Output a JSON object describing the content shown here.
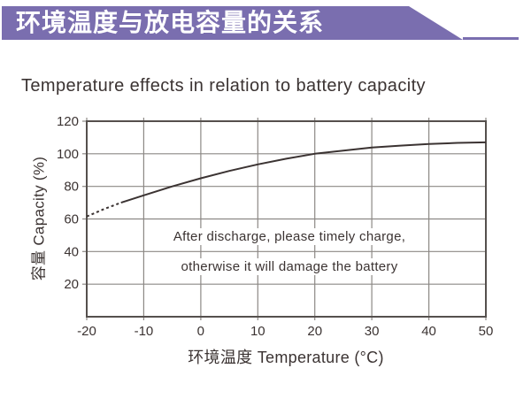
{
  "header": {
    "title": "环境温度与放电容量的关系"
  },
  "subtitle": "Temperature effects in relation to battery capacity",
  "annotation": {
    "line1": "After discharge, please timely charge,",
    "line2": "otherwise it will damage the battery"
  },
  "colors": {
    "accent": "#7A6EAF",
    "ink": "#3B3332",
    "grid": "#8C8885",
    "frame": "#55504D",
    "curve": "#3B3332"
  },
  "chart_data": {
    "type": "line",
    "title": "Temperature effects in relation to battery capacity",
    "xlabel": "环境温度 Temperature (°C)",
    "ylabel": "容量 Capacity (%)",
    "xlim": [
      -20,
      50
    ],
    "ylim": [
      0,
      120
    ],
    "x_ticks": [
      -20,
      -10,
      0,
      10,
      20,
      30,
      40,
      50
    ],
    "y_ticks": [
      20,
      40,
      60,
      80,
      100,
      120
    ],
    "grid": true,
    "legend": "none",
    "annotation": [
      "After discharge, please timely charge,",
      "otherwise it will damage the battery"
    ],
    "series": [
      {
        "name": "capacity-vs-temperature",
        "x": [
          -20,
          -17,
          -14,
          -10,
          -5,
          0,
          5,
          10,
          15,
          20,
          25,
          30,
          35,
          40,
          45,
          50
        ],
        "y": [
          61.5,
          66,
          70,
          74.5,
          80,
          85,
          89.5,
          93.5,
          97,
          100,
          102,
          103.8,
          105,
          106,
          106.7,
          107
        ],
        "dashed_until_x": -14,
        "style_low_temp_segment": "dashed"
      }
    ]
  }
}
